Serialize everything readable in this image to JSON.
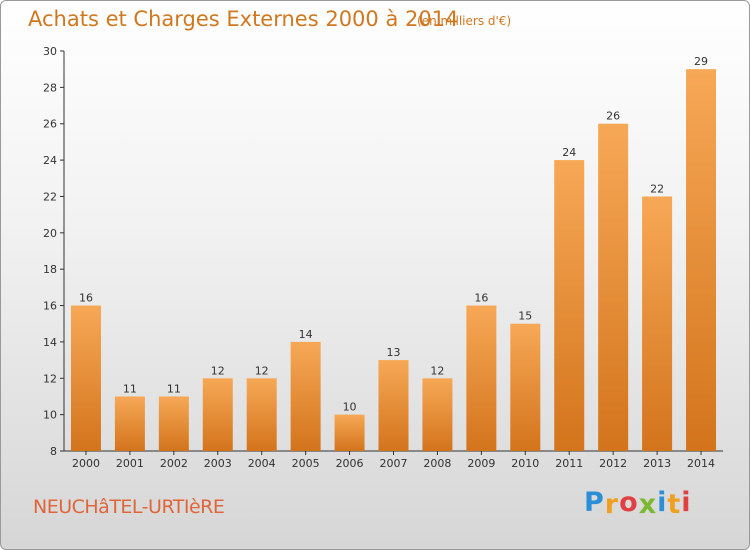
{
  "header": {
    "title": "Achats et Charges Externes 2000 à 2014",
    "subtitle": "(en milliers d'€)"
  },
  "footer": {
    "commune": "NEUCHâTEL-URTIèRE",
    "logo": {
      "text": "Proxiti",
      "letters": [
        {
          "char": "P",
          "color": "#2a8fd6"
        },
        {
          "char": "r",
          "color": "#f0a020"
        },
        {
          "char": "o",
          "color": "#e04040"
        },
        {
          "char": "x",
          "color": "#7ab830"
        },
        {
          "char": "i",
          "color": "#2a8fd6"
        },
        {
          "char": "t",
          "color": "#f0a020"
        },
        {
          "char": "i",
          "color": "#e04040"
        }
      ]
    }
  },
  "colors": {
    "accent": "#d0781f",
    "bar_top": "#f7a856",
    "bar_bottom": "#d3741c",
    "axis": "#333333"
  },
  "chart_data": {
    "type": "bar",
    "title": "Achats et Charges Externes 2000 à 2014",
    "subtitle": "(en milliers d'€)",
    "categories": [
      "2000",
      "2001",
      "2002",
      "2003",
      "2004",
      "2005",
      "2006",
      "2007",
      "2008",
      "2009",
      "2010",
      "2011",
      "2012",
      "2013",
      "2014"
    ],
    "values": [
      16,
      11,
      11,
      12,
      12,
      14,
      10,
      13,
      12,
      16,
      15,
      24,
      26,
      22,
      29
    ],
    "ylim": [
      8,
      30
    ],
    "yticks": [
      8,
      10,
      12,
      14,
      16,
      18,
      20,
      22,
      24,
      26,
      28,
      30
    ],
    "xlabel": "",
    "ylabel": "",
    "grid": false,
    "data_labels": true
  }
}
